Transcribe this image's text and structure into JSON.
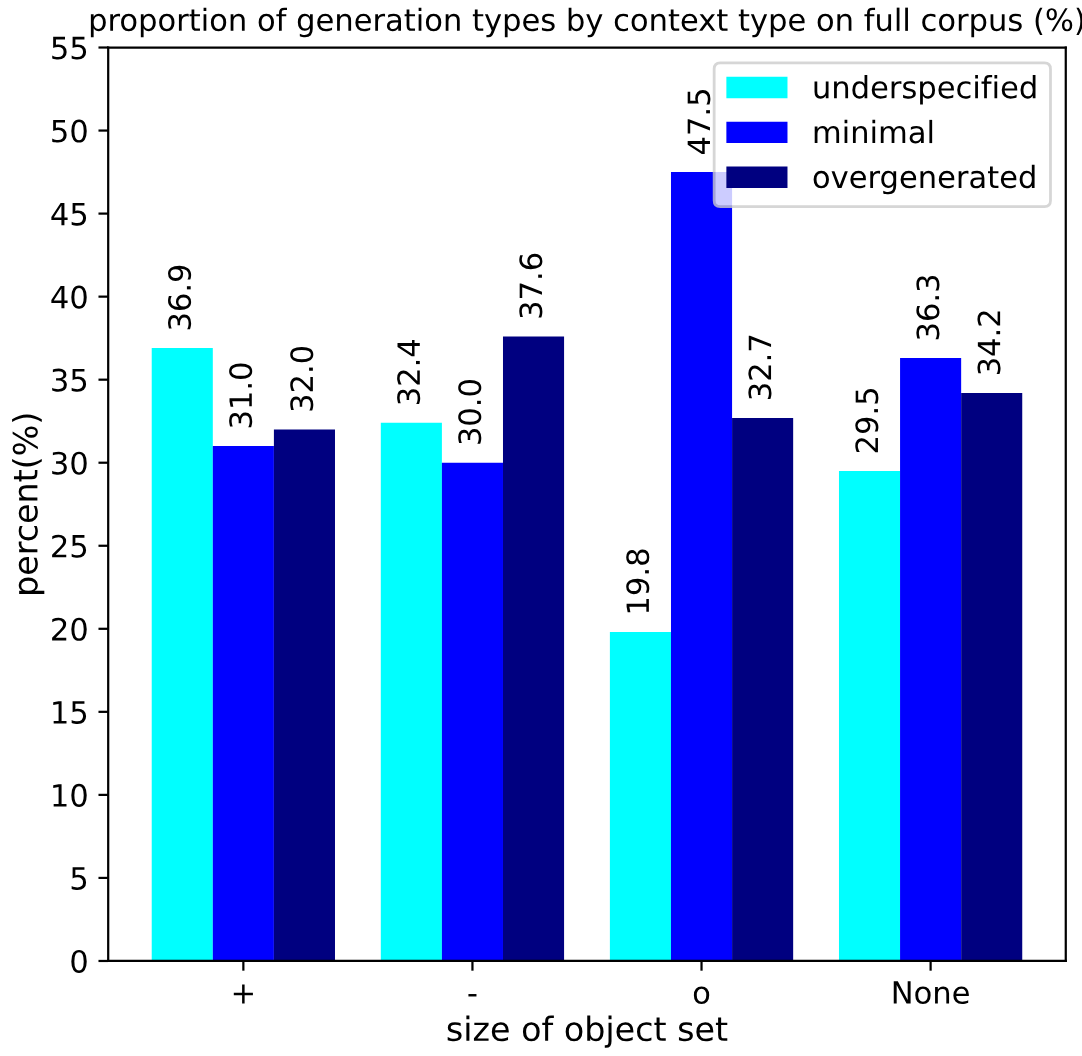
{
  "chart_data": {
    "type": "bar",
    "title": "proportion of generation types by context type on full corpus (%)",
    "xlabel": "size of object set",
    "ylabel": "percent(%)",
    "categories": [
      "+",
      "-",
      "o",
      "None"
    ],
    "series": [
      {
        "name": "underspecified",
        "color": "#00ffff",
        "values": [
          36.9,
          32.4,
          19.8,
          29.5
        ],
        "value_labels": [
          "36.9",
          "32.4",
          "19.8",
          "29.5"
        ]
      },
      {
        "name": "minimal",
        "color": "#0000ff",
        "values": [
          31.0,
          30.0,
          47.5,
          36.3
        ],
        "value_labels": [
          "31.0",
          "30.0",
          "47.5",
          "36.3"
        ]
      },
      {
        "name": "overgenerated",
        "color": "#000080",
        "values": [
          32.0,
          37.6,
          32.7,
          34.2
        ],
        "value_labels": [
          "32.0",
          "37.6",
          "32.7",
          "34.2"
        ]
      }
    ],
    "ylim": [
      0,
      55
    ],
    "yticks": [
      0,
      5,
      10,
      15,
      20,
      25,
      30,
      35,
      40,
      45,
      50,
      55
    ],
    "legend": "top right",
    "grid": false
  }
}
